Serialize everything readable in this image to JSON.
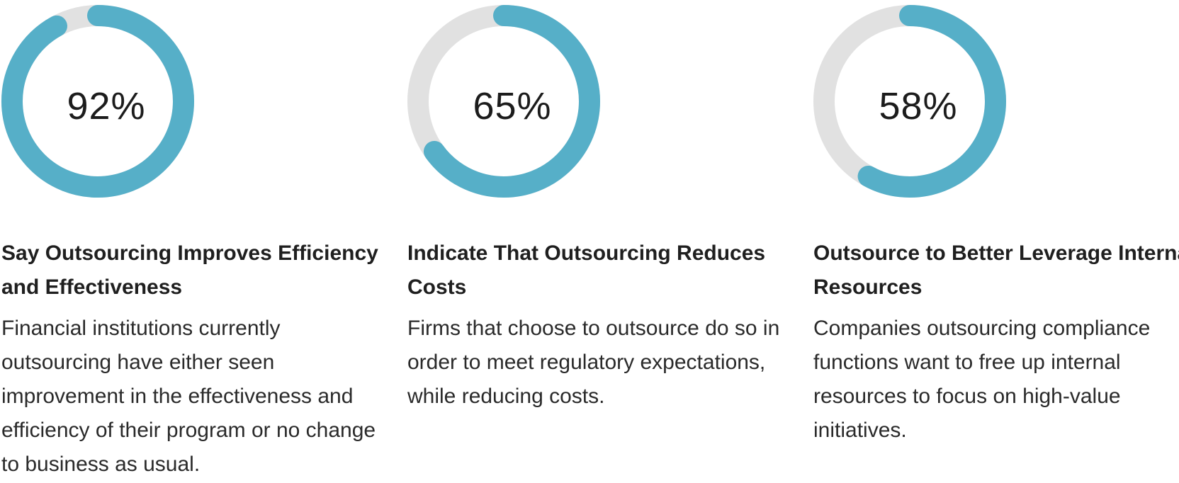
{
  "colors": {
    "accent": "#56afc8",
    "track": "#e1e1e1",
    "text": "#1f1f1f"
  },
  "chart_data": [
    {
      "type": "pie",
      "values": [
        92
      ],
      "value_label": "92%",
      "title": "Say Outsourcing Improves Efficiency and Effectiveness",
      "description": "Financial institutions currently outsourcing have either seen improvement in the effectiveness and efficiency of their program or no change to business as usual."
    },
    {
      "type": "pie",
      "values": [
        65
      ],
      "value_label": "65%",
      "title": "Indicate That Outsourcing Reduces Costs",
      "description": "Firms that choose to outsource do so in order to meet regulatory expectations, while reducing costs."
    },
    {
      "type": "pie",
      "values": [
        58
      ],
      "value_label": "58%",
      "title": "Outsource to Better Leverage Internal Resources",
      "description": "Companies outsourcing compliance functions want to free up internal resources to focus on high-value initiatives."
    }
  ]
}
